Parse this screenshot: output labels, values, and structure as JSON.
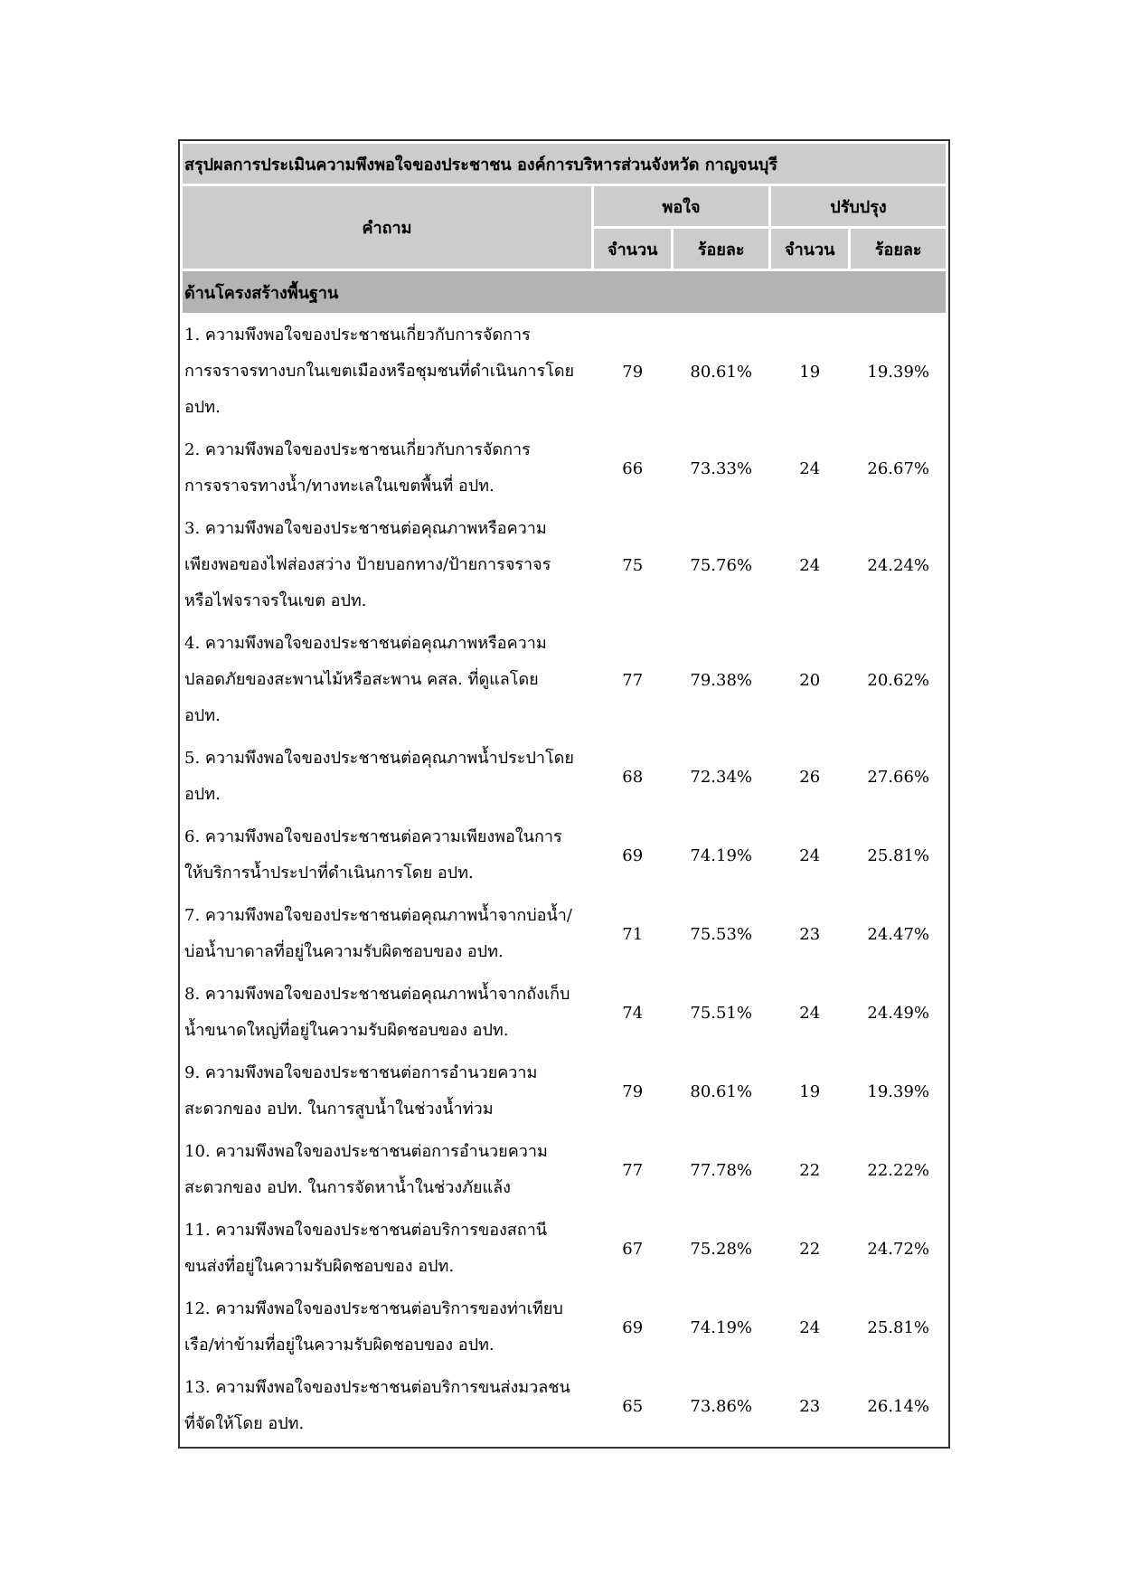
{
  "table": {
    "title": "สรุปผลการประเมินความพึงพอใจของประชาชน องค์การบริหารส่วนจังหวัด กาญจนบุรี",
    "headers": {
      "question": "คำถาม",
      "satisfied": "พอใจ",
      "improve": "ปรับปรุง",
      "count": "จำนวน",
      "percent": "ร้อยละ"
    },
    "section": "ด้านโครงสร้างพื้นฐาน",
    "colors": {
      "satisfied_count": "#2e7d32",
      "percent": "#0000ee",
      "improve_count": "#ee0000",
      "header_bg": "#cccccc",
      "section_bg": "#b3b3b3"
    },
    "rows": [
      {
        "q": "1. ความพึงพอใจของประชาชนเกี่ยวกับการจัดการ\nการจราจรทางบกในเขตเมืองหรือชุมชนที่ดำเนินการโดย\nอปท.",
        "sc": "79",
        "sp": "80.61%",
        "ic": "19",
        "ip": "19.39%"
      },
      {
        "q": "2. ความพึงพอใจของประชาชนเกี่ยวกับการจัดการ\nการจราจรทางน้ำ/ทางทะเลในเขตพื้นที่ อปท.",
        "sc": "66",
        "sp": "73.33%",
        "ic": "24",
        "ip": "26.67%"
      },
      {
        "q": "3. ความพึงพอใจของประชาชนต่อคุณภาพหรือความ\nเพียงพอของไฟส่องสว่าง ป้ายบอกทาง/ป้ายการจราจร\nหรือไฟจราจรในเขต อปท.",
        "sc": "75",
        "sp": "75.76%",
        "ic": "24",
        "ip": "24.24%"
      },
      {
        "q": "4. ความพึงพอใจของประชาชนต่อคุณภาพหรือความ\nปลอดภัยของสะพานไม้หรือสะพาน คสล. ที่ดูแลโดย\nอปท.",
        "sc": "77",
        "sp": "79.38%",
        "ic": "20",
        "ip": "20.62%"
      },
      {
        "q": "5. ความพึงพอใจของประชาชนต่อคุณภาพน้ำประปาโดย\nอปท.",
        "sc": "68",
        "sp": "72.34%",
        "ic": "26",
        "ip": "27.66%"
      },
      {
        "q": "6. ความพึงพอใจของประชาชนต่อความเพียงพอในการ\nให้บริการน้ำประปาที่ดำเนินการโดย อปท.",
        "sc": "69",
        "sp": "74.19%",
        "ic": "24",
        "ip": "25.81%"
      },
      {
        "q": "7. ความพึงพอใจของประชาชนต่อคุณภาพน้ำจากบ่อน้ำ/\nบ่อน้ำบาดาลที่อยู่ในความรับผิดชอบของ อปท.",
        "sc": "71",
        "sp": "75.53%",
        "ic": "23",
        "ip": "24.47%"
      },
      {
        "q": "8. ความพึงพอใจของประชาชนต่อคุณภาพน้ำจากถังเก็บ\nน้ำขนาดใหญ่ที่อยู่ในความรับผิดชอบของ อปท.",
        "sc": "74",
        "sp": "75.51%",
        "ic": "24",
        "ip": "24.49%"
      },
      {
        "q": "9. ความพึงพอใจของประชาชนต่อการอำนวยความ\nสะดวกของ อปท. ในการสูบน้ำในช่วงน้ำท่วม",
        "sc": "79",
        "sp": "80.61%",
        "ic": "19",
        "ip": "19.39%"
      },
      {
        "q": "10. ความพึงพอใจของประชาชนต่อการอำนวยความ\nสะดวกของ อปท. ในการจัดหาน้ำในช่วงภัยแล้ง",
        "sc": "77",
        "sp": "77.78%",
        "ic": "22",
        "ip": "22.22%"
      },
      {
        "q": "11. ความพึงพอใจของประชาชนต่อบริการของสถานี\nขนส่งที่อยู่ในความรับผิดชอบของ อปท.",
        "sc": "67",
        "sp": "75.28%",
        "ic": "22",
        "ip": "24.72%"
      },
      {
        "q": "12. ความพึงพอใจของประชาชนต่อบริการของท่าเทียบ\nเรือ/ท่าข้ามที่อยู่ในความรับผิดชอบของ อปท.",
        "sc": "69",
        "sp": "74.19%",
        "ic": "24",
        "ip": "25.81%"
      },
      {
        "q": "13. ความพึงพอใจของประชาชนต่อบริการขนส่งมวลชน\nที่จัดให้โดย อปท.",
        "sc": "65",
        "sp": "73.86%",
        "ic": "23",
        "ip": "26.14%"
      }
    ]
  }
}
